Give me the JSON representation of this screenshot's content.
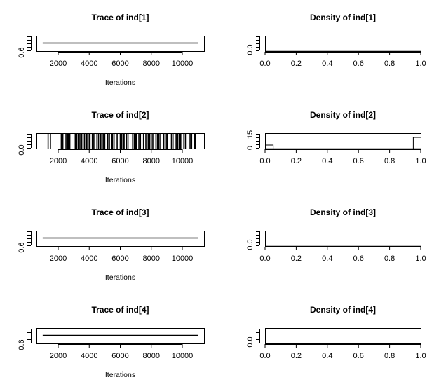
{
  "chart_data": [
    {
      "type": "trace",
      "title": "Trace of ind[1]",
      "xlabel": "Iterations",
      "xticks": [
        "2000",
        "4000",
        "6000",
        "8000",
        "10000"
      ],
      "yticks": [
        "0.6"
      ],
      "xlim": [
        500,
        11500
      ],
      "ylim": [
        0.4,
        1.6
      ],
      "x": [
        1000,
        11000
      ],
      "y": [
        1,
        1
      ]
    },
    {
      "type": "histogram",
      "title": "Density of ind[1]",
      "xticks": [
        "0.0",
        "0.2",
        "0.4",
        "0.6",
        "0.8",
        "1.0"
      ],
      "yticks": [
        "0.0"
      ],
      "xlim": [
        0,
        1
      ],
      "ylim": [
        0,
        1
      ],
      "bins": [
        0,
        1
      ],
      "values": [
        0
      ]
    },
    {
      "type": "trace",
      "title": "Trace of ind[2]",
      "xlabel": "Iterations",
      "xticks": [
        "2000",
        "4000",
        "6000",
        "8000",
        "10000"
      ],
      "yticks": [
        "0.0"
      ],
      "xlim": [
        500,
        11500
      ],
      "ylim": [
        0,
        1
      ],
      "switch_iterations": [
        1350,
        1500,
        2200,
        2250,
        2300,
        2500,
        2600,
        2650,
        2750,
        3100,
        3200,
        3300,
        3400,
        3500,
        3600,
        3700,
        3800,
        3850,
        4000,
        4050,
        4200,
        4300,
        4500,
        4600,
        4700,
        4750,
        4900,
        5000,
        5200,
        5300,
        5450,
        5500,
        5600,
        5800,
        6000,
        6100,
        6200,
        6250,
        6400,
        6500,
        6800,
        6900,
        7000,
        7050,
        7200,
        7300,
        7500,
        7650,
        7800,
        7900,
        8000,
        8100,
        8300,
        8400,
        8500,
        8600,
        8800,
        8900,
        9000,
        9050,
        9300,
        9400,
        9600,
        9700,
        9800,
        9900,
        10100,
        10200,
        10500,
        10600,
        10800,
        10850
      ]
    },
    {
      "type": "histogram",
      "title": "Density of ind[2]",
      "xticks": [
        "0.0",
        "0.2",
        "0.4",
        "0.6",
        "0.8",
        "1.0"
      ],
      "yticks": [
        "0",
        "15"
      ],
      "xlim": [
        0,
        1
      ],
      "ylim": [
        0,
        20
      ],
      "bins": [
        0,
        0.05,
        0.95,
        1
      ],
      "values": [
        5,
        0,
        15
      ]
    },
    {
      "type": "trace",
      "title": "Trace of ind[3]",
      "xlabel": "Iterations",
      "xticks": [
        "2000",
        "4000",
        "6000",
        "8000",
        "10000"
      ],
      "yticks": [
        "0.6"
      ],
      "xlim": [
        500,
        11500
      ],
      "ylim": [
        0.4,
        1.6
      ],
      "x": [
        1000,
        11000
      ],
      "y": [
        1,
        1
      ]
    },
    {
      "type": "histogram",
      "title": "Density of ind[3]",
      "xticks": [
        "0.0",
        "0.2",
        "0.4",
        "0.6",
        "0.8",
        "1.0"
      ],
      "yticks": [
        "0.0"
      ],
      "xlim": [
        0,
        1
      ],
      "ylim": [
        0,
        1
      ],
      "bins": [
        0,
        1
      ],
      "values": [
        0
      ]
    },
    {
      "type": "trace",
      "title": "Trace of ind[4]",
      "xlabel": "Iterations",
      "xticks": [
        "2000",
        "4000",
        "6000",
        "8000",
        "10000"
      ],
      "yticks": [
        "0.6"
      ],
      "xlim": [
        500,
        11500
      ],
      "ylim": [
        0.4,
        1.6
      ],
      "x": [
        1000,
        11000
      ],
      "y": [
        1,
        1
      ]
    },
    {
      "type": "histogram",
      "title": "Density of ind[4]",
      "xticks": [
        "0.0",
        "0.2",
        "0.4",
        "0.6",
        "0.8",
        "1.0"
      ],
      "yticks": [
        "0.0"
      ],
      "xlim": [
        0,
        1
      ],
      "ylim": [
        0,
        1
      ],
      "bins": [
        0,
        1
      ],
      "values": [
        0
      ]
    }
  ]
}
